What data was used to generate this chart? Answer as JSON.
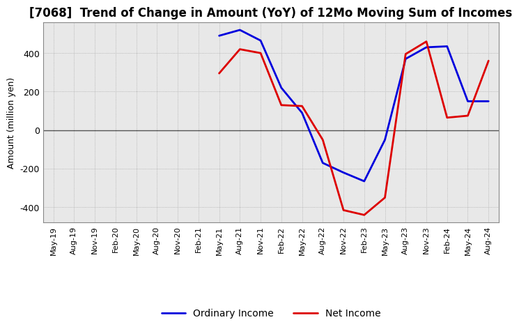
{
  "title": "[7068]  Trend of Change in Amount (YoY) of 12Mo Moving Sum of Incomes",
  "ylabel": "Amount (million yen)",
  "x_labels": [
    "May-19",
    "Aug-19",
    "Nov-19",
    "Feb-20",
    "May-20",
    "Aug-20",
    "Nov-20",
    "Feb-21",
    "May-21",
    "Aug-21",
    "Nov-21",
    "Feb-22",
    "May-22",
    "Aug-22",
    "Nov-22",
    "Feb-23",
    "May-23",
    "Aug-23",
    "Nov-23",
    "Feb-24",
    "May-24",
    "Aug-24"
  ],
  "ordinary_income": [
    null,
    null,
    null,
    null,
    null,
    null,
    null,
    null,
    490,
    520,
    465,
    220,
    90,
    -170,
    -220,
    -265,
    -50,
    370,
    430,
    435,
    150,
    150
  ],
  "net_income": [
    null,
    null,
    null,
    null,
    null,
    null,
    null,
    null,
    295,
    420,
    400,
    130,
    125,
    -50,
    -415,
    -440,
    -350,
    395,
    460,
    65,
    75,
    360
  ],
  "ordinary_color": "#0000dd",
  "net_color": "#dd0000",
  "ylim": [
    -480,
    560
  ],
  "yticks": [
    -400,
    -200,
    0,
    200,
    400
  ],
  "grid_color": "#aaaaaa",
  "plot_bg_color": "#e8e8e8",
  "background_color": "#ffffff",
  "title_fontsize": 12,
  "axis_fontsize": 9,
  "legend_fontsize": 10
}
